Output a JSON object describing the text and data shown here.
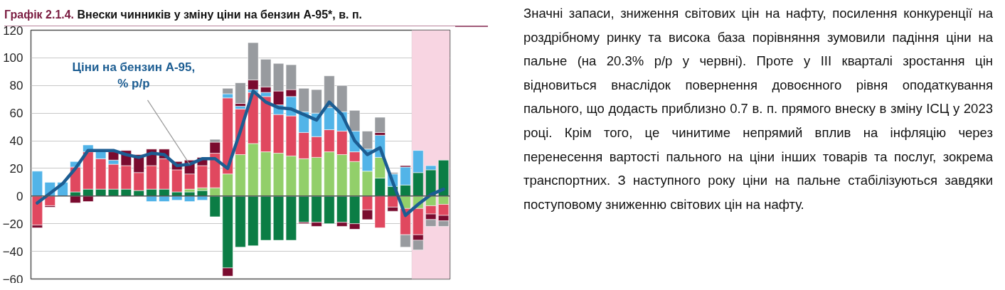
{
  "chart_data": {
    "type": "bar",
    "stacked": true,
    "title": "Графік 2.1.4. Внески чинників у зміну ціни на бензин А-95*, в. п.",
    "categories": [
      null,
      null,
      null,
      null,
      null,
      null,
      null,
      null,
      null,
      null,
      null,
      null,
      null,
      null,
      null,
      null,
      null,
      null,
      null,
      null,
      null,
      null,
      null,
      null,
      null,
      null,
      null,
      null,
      null,
      null,
      null,
      null,
      null
    ],
    "series": [
      {
        "color": "#0b7d45",
        "values": [
          null,
          null,
          null,
          3,
          5,
          5,
          5,
          5,
          4,
          5,
          5,
          3,
          3,
          4,
          -15,
          -52,
          -37,
          -36,
          -32,
          -32,
          -32,
          -19,
          -19,
          -20,
          -19,
          -20,
          null,
          13,
          7,
          8,
          17,
          19,
          26
        ]
      },
      {
        "color": "#92cf6a",
        "values": [
          null,
          null,
          null,
          null,
          null,
          null,
          null,
          null,
          null,
          null,
          null,
          null,
          2,
          2,
          6,
          16,
          30,
          38,
          32,
          31,
          29,
          27,
          28,
          32,
          30,
          25,
          18,
          15,
          null,
          -9,
          -9,
          -7,
          -6
        ]
      },
      {
        "color": "#e0485f",
        "values": [
          -21,
          -7,
          null,
          18,
          27,
          22,
          18,
          17,
          13,
          17,
          22,
          16,
          11,
          16,
          25,
          55,
          33,
          37,
          40,
          28,
          29,
          19,
          15,
          16,
          17,
          7,
          -10,
          -23,
          -8,
          -19,
          -19,
          -6,
          -8
        ]
      },
      {
        "color": "#52b4e8",
        "values": [
          18,
          10,
          10,
          4,
          5,
          6,
          3,
          null,
          null,
          -4,
          -4,
          -3,
          -4,
          -3,
          null,
          3,
          2,
          2,
          3,
          7,
          14,
          15,
          17,
          16,
          14,
          15,
          16,
          16,
          9,
          13,
          16,
          3,
          null
        ]
      },
      {
        "color": "#7a0b2f",
        "values": [
          -2,
          -1,
          null,
          -5,
          -4,
          null,
          6,
          11,
          13,
          12,
          7,
          6,
          10,
          6,
          8,
          -6,
          2,
          7,
          4,
          10,
          5,
          -1,
          -3,
          null,
          -3,
          -4,
          -7,
          2,
          -3,
          1,
          -4,
          -4,
          -4
        ]
      },
      {
        "color": "#989b9f",
        "values": [
          null,
          null,
          null,
          null,
          null,
          null,
          null,
          null,
          null,
          null,
          null,
          null,
          null,
          null,
          2,
          4,
          15,
          27,
          20,
          20,
          18,
          17,
          17,
          23,
          19,
          15,
          13,
          11,
          1,
          -9,
          -7,
          -5,
          -4
        ]
      },
      {
        "type": "line",
        "name": "Ціни на бензин А-95,\n% р/р",
        "color": "#1c5d92",
        "values": [
          -5,
          2,
          9,
          20,
          33,
          33,
          33,
          30,
          28,
          31,
          30,
          22,
          23,
          27,
          27,
          20,
          47,
          76,
          68,
          64,
          63,
          59,
          55,
          68,
          59,
          40,
          30,
          35,
          10,
          -14,
          -6,
          1,
          5
        ]
      }
    ],
    "ylim": [
      -60,
      120
    ],
    "yticks": [
      -60,
      -40,
      -20,
      0,
      20,
      40,
      60,
      80,
      100,
      120
    ],
    "grid": "y",
    "annotations": [
      "Значні запаси, зниження світових цін на нафту, посилення конкуренції на роздрібному ринку та висока база порівняння зумовили падіння ціни на пальне (на 20.3% р/р у червні). Проте у ІІІ кварталі зростання цін відновиться внаслідок повернення довоєнного рівня оподаткування пального, що додасть приблизно 0.7 в. п. прямого внеску в зміну ІСЦ у 2023 році. Крім того, це чинитиме непрямий вплив на інфляцію через перенесення вартості пального на ціни інших товарів та послуг, зокрема транспортних. З наступного року ціни на пальне стабілізуються завдяки поступовому зниженню світових цін на нафту."
    ]
  }
}
